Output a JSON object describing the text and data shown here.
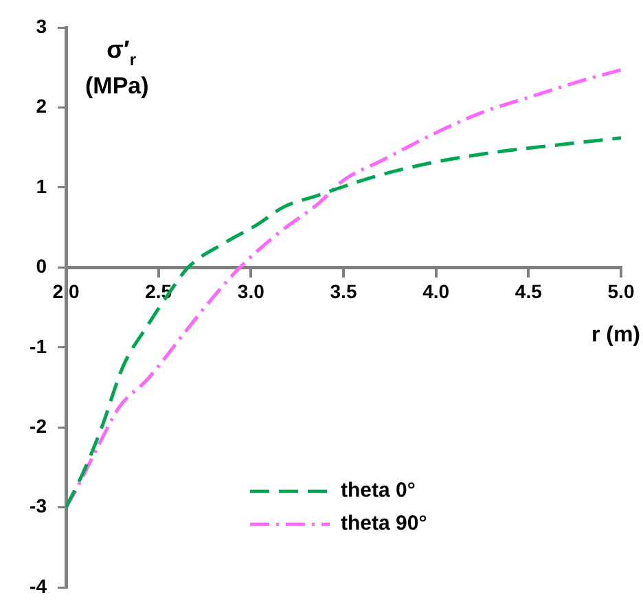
{
  "chart_data": {
    "type": "line",
    "xlabel": "r (m)",
    "ylabel": "σ′$_{r}$ (MPa)",
    "xlim": [
      2,
      5
    ],
    "xticks": [
      {
        "value": 2,
        "label": "2.0"
      },
      {
        "value": 2.5,
        "label": "2.5"
      },
      {
        "value": 3,
        "label": "3.0"
      },
      {
        "value": 3.5,
        "label": "3.5"
      },
      {
        "value": 4,
        "label": "4.0"
      },
      {
        "value": 4.5,
        "label": "4.5"
      },
      {
        "value": 5,
        "label": "5.0"
      }
    ],
    "ylim": [
      -4,
      3
    ],
    "yticks": [
      -4,
      -3,
      -2,
      -1,
      0,
      1,
      2,
      3
    ],
    "grid": false,
    "legend": "bottom right",
    "marker": "none",
    "series": [
      {
        "name": "theta 0°",
        "color": "#00a651",
        "line_style": "dashed",
        "x": [
          2,
          2.09,
          2.19,
          2.31,
          2.44,
          2.56,
          2.66,
          2.86,
          3.03,
          3.18,
          3.36,
          3.46,
          3.69,
          4,
          4.35,
          4.65,
          5
        ],
        "values": [
          -3,
          -2.58,
          -2.02,
          -1.23,
          -0.73,
          -0.31,
          0,
          0.31,
          0.53,
          0.76,
          0.9,
          0.98,
          1.15,
          1.32,
          1.45,
          1.53,
          1.62
        ]
      },
      {
        "name": "theta 90°",
        "color": "#ff66ff",
        "line_style": "dashdot",
        "x": [
          2,
          2.05,
          2.16,
          2.29,
          2.44,
          2.66,
          2.8,
          2.94,
          3.16,
          3.36,
          3.5,
          3.71,
          3.97,
          4.24,
          4.52,
          4.81,
          5
        ],
        "values": [
          -3,
          -2.8,
          -2.3,
          -1.74,
          -1.4,
          -0.76,
          -0.36,
          0,
          0.45,
          0.79,
          1.09,
          1.34,
          1.65,
          1.93,
          2.14,
          2.35,
          2.47
        ]
      }
    ]
  }
}
